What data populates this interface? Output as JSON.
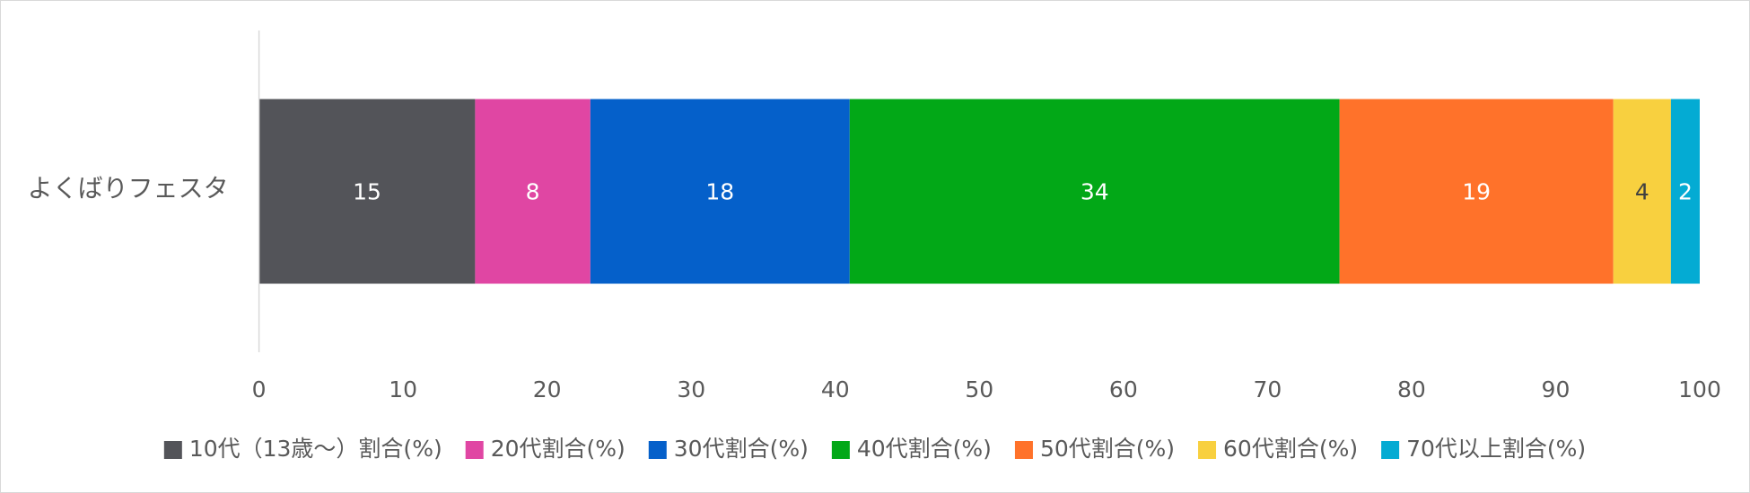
{
  "chart_data": {
    "type": "stacked-barh",
    "categories": [
      "よくばりフェスタ"
    ],
    "series": [
      {
        "name": "10代（13歳～）割合(%)",
        "color": "#535459",
        "values": [
          15
        ]
      },
      {
        "name": "20代割合(%)",
        "color": "#e046a3",
        "values": [
          8
        ]
      },
      {
        "name": "30代割合(%)",
        "color": "#0560ca",
        "values": [
          18
        ]
      },
      {
        "name": "40代割合(%)",
        "color": "#02a817",
        "values": [
          34
        ]
      },
      {
        "name": "50代割合(%)",
        "color": "#ff722a",
        "values": [
          19
        ]
      },
      {
        "name": "60代割合(%)",
        "color": "#f8d03f",
        "values": [
          4
        ]
      },
      {
        "name": "70代以上割合(%)",
        "color": "#04abd3",
        "values": [
          2
        ]
      }
    ],
    "xlim": [
      0,
      100
    ],
    "xticks": [
      0,
      10,
      20,
      30,
      40,
      50,
      60,
      70,
      80,
      90,
      100
    ],
    "grid": false,
    "legend": "bottom"
  }
}
